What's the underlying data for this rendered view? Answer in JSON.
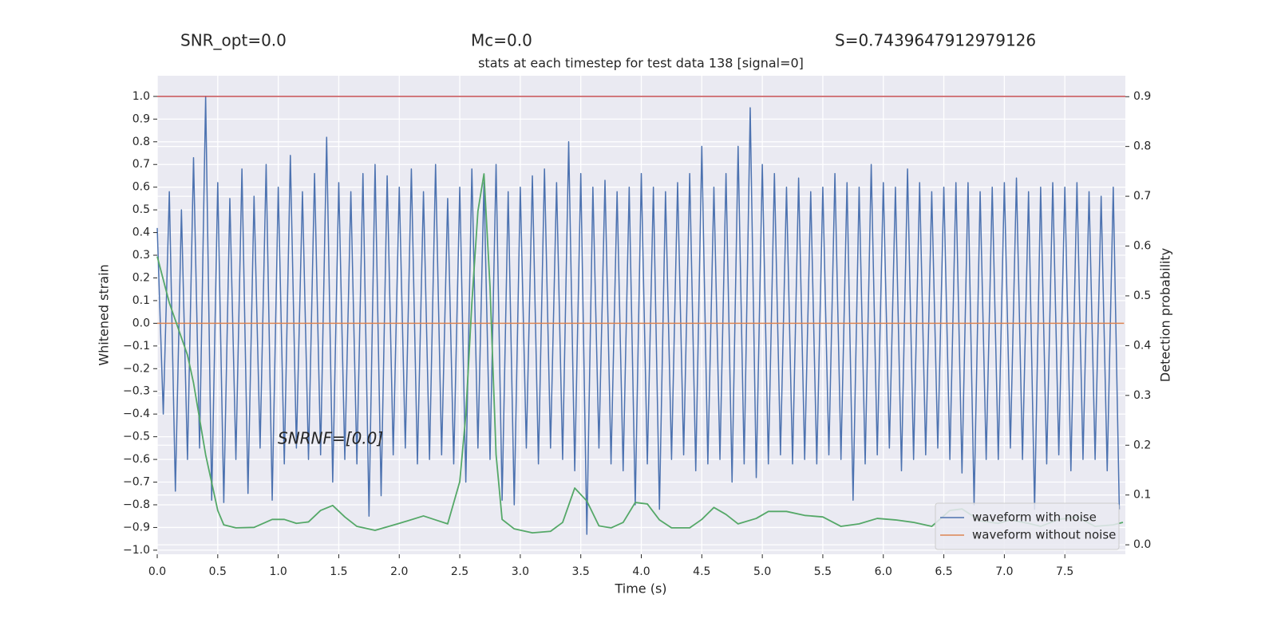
{
  "chart_data": {
    "type": "line",
    "title": "stats at each timestep for test data 138 [signal=0]",
    "header_texts": [
      "SNR_opt=0.0",
      "Mc=0.0",
      "S=0.7439647912979126"
    ],
    "annotation": "SNRNF=[0.0]",
    "xlabel": "Time (s)",
    "ylabel": "Whitened strain",
    "y2label": "Detection probability",
    "xlim": [
      0,
      8.0
    ],
    "ylim": [
      -1.018,
      1.091
    ],
    "y2lim": [
      -0.019,
      0.942
    ],
    "xticks": [
      {
        "value": 0,
        "label": "0.0"
      },
      0.5,
      {
        "value": 1,
        "label": "1.0"
      },
      1.5,
      {
        "value": 2,
        "label": "2.0"
      },
      2.5,
      {
        "value": 3,
        "label": "3.0"
      },
      3.5,
      {
        "value": 4,
        "label": "4.0"
      },
      4.5,
      {
        "value": 5,
        "label": "5.0"
      },
      5.5,
      {
        "value": 6,
        "label": "6.0"
      },
      6.5,
      {
        "value": 7,
        "label": "7.0"
      },
      7.5
    ],
    "yticks": [
      {
        "value": -1,
        "label": "−1.0"
      },
      {
        "value": -0.9,
        "label": "−0.9"
      },
      {
        "value": -0.8,
        "label": "−0.8"
      },
      {
        "value": -0.7,
        "label": "−0.7"
      },
      {
        "value": -0.6,
        "label": "−0.6"
      },
      {
        "value": -0.5,
        "label": "−0.5"
      },
      {
        "value": -0.4,
        "label": "−0.4"
      },
      {
        "value": -0.3,
        "label": "−0.3"
      },
      {
        "value": -0.2,
        "label": "−0.2"
      },
      {
        "value": -0.1,
        "label": "−0.1"
      },
      {
        "value": 0,
        "label": "0.0"
      },
      0.1,
      0.2,
      0.3,
      0.4,
      0.5,
      0.6,
      0.7,
      0.8,
      0.9,
      {
        "value": 1,
        "label": "1.0"
      }
    ],
    "y2ticks": [
      {
        "value": 0,
        "label": "0.0"
      },
      0.1,
      0.2,
      0.3,
      0.4,
      0.5,
      0.6,
      0.7,
      0.8,
      0.9
    ],
    "grid": true,
    "legend": "lower right",
    "hlines": [
      {
        "value": 1,
        "color": "#c44e52"
      }
    ],
    "series": [
      {
        "name": "waveform with noise",
        "color": "#4c72b0",
        "x": [
          0,
          0.05,
          0.1,
          0.15,
          0.2,
          0.25,
          0.3,
          0.35,
          0.4,
          0.45,
          0.5,
          0.55,
          0.6,
          0.65,
          0.7,
          0.75,
          0.8,
          0.85,
          0.9,
          0.95,
          1,
          1.05,
          1.1,
          1.15,
          1.2,
          1.25,
          1.3,
          1.35,
          1.4,
          1.45,
          1.5,
          1.55,
          1.6,
          1.65,
          1.7,
          1.75,
          1.8,
          1.85,
          1.9,
          1.95,
          2,
          2.05,
          2.1,
          2.15,
          2.2,
          2.25,
          2.3,
          2.35,
          2.4,
          2.45,
          2.5,
          2.55,
          2.6,
          2.65,
          2.7,
          2.75,
          2.8,
          2.85,
          2.9,
          2.95,
          3,
          3.05,
          3.1,
          3.15,
          3.2,
          3.25,
          3.3,
          3.35,
          3.4,
          3.45,
          3.5,
          3.55,
          3.6,
          3.65,
          3.7,
          3.75,
          3.8,
          3.85,
          3.9,
          3.95,
          4,
          4.05,
          4.1,
          4.15,
          4.2,
          4.25,
          4.3,
          4.35,
          4.4,
          4.45,
          4.5,
          4.55,
          4.6,
          4.65,
          4.7,
          4.75,
          4.8,
          4.85,
          4.9,
          4.95,
          5,
          5.05,
          5.1,
          5.15,
          5.2,
          5.25,
          5.3,
          5.35,
          5.4,
          5.45,
          5.5,
          5.55,
          5.6,
          5.65,
          5.7,
          5.75,
          5.8,
          5.85,
          5.9,
          5.95,
          6,
          6.05,
          6.1,
          6.15,
          6.2,
          6.25,
          6.3,
          6.35,
          6.4,
          6.45,
          6.5,
          6.55,
          6.6,
          6.65,
          6.7,
          6.75,
          6.8,
          6.85,
          6.9,
          6.95,
          7,
          7.05,
          7.1,
          7.15,
          7.2,
          7.25,
          7.3,
          7.35,
          7.4,
          7.45,
          7.5,
          7.55,
          7.6,
          7.65,
          7.7,
          7.75,
          7.8,
          7.85,
          7.9,
          7.95
        ],
        "values": [
          0.42,
          -0.4,
          0.58,
          -0.74,
          0.5,
          -0.6,
          0.73,
          -0.55,
          1.0,
          -0.78,
          0.62,
          -0.79,
          0.55,
          -0.6,
          0.68,
          -0.75,
          0.56,
          -0.55,
          0.7,
          -0.78,
          0.6,
          -0.62,
          0.74,
          -0.55,
          0.58,
          -0.6,
          0.66,
          -0.58,
          0.82,
          -0.7,
          0.62,
          -0.6,
          0.58,
          -0.62,
          0.66,
          -0.85,
          0.7,
          -0.76,
          0.65,
          -0.58,
          0.6,
          -0.55,
          0.68,
          -0.62,
          0.58,
          -0.6,
          0.7,
          -0.58,
          0.55,
          -0.62,
          0.6,
          -0.7,
          0.68,
          -0.55,
          0.62,
          -0.6,
          0.7,
          -0.78,
          0.58,
          -0.8,
          0.6,
          -0.55,
          0.65,
          -0.62,
          0.68,
          -0.55,
          0.62,
          -0.6,
          0.8,
          -0.65,
          0.66,
          -0.93,
          0.6,
          -0.55,
          0.63,
          -0.62,
          0.58,
          -0.65,
          0.6,
          -0.8,
          0.66,
          -0.62,
          0.6,
          -0.82,
          0.58,
          -0.6,
          0.62,
          -0.58,
          0.66,
          -0.65,
          0.78,
          -0.62,
          0.6,
          -0.6,
          0.66,
          -0.7,
          0.78,
          -0.62,
          0.95,
          -0.68,
          0.7,
          -0.62,
          0.66,
          -0.58,
          0.6,
          -0.62,
          0.64,
          -0.6,
          0.58,
          -0.62,
          0.6,
          -0.58,
          0.66,
          -0.6,
          0.62,
          -0.78,
          0.6,
          -0.62,
          0.7,
          -0.58,
          0.62,
          -0.55,
          0.6,
          -0.65,
          0.68,
          -0.6,
          0.62,
          -0.58,
          0.58,
          -0.55,
          0.6,
          -0.6,
          0.62,
          -0.66,
          0.62,
          -0.8,
          0.58,
          -0.6,
          0.6,
          -0.6,
          0.62,
          -0.55,
          0.64,
          -0.6,
          0.58,
          -0.82,
          0.6,
          -0.62,
          0.62,
          -0.58,
          0.6,
          -0.65,
          0.62,
          -0.6,
          0.58,
          -0.6,
          0.56,
          -0.65,
          0.6,
          -0.82
        ]
      },
      {
        "name": "waveform without noise",
        "color": "#dd8452",
        "x": [
          0,
          7.99
        ],
        "values": [
          0,
          0
        ]
      },
      {
        "color": "#55a868",
        "axis": "y2",
        "x": [
          0,
          0.1,
          0.25,
          0.3,
          0.4,
          0.5,
          0.55,
          0.65,
          0.8,
          0.95,
          1.05,
          1.15,
          1.25,
          1.35,
          1.45,
          1.55,
          1.65,
          1.8,
          2.0,
          2.2,
          2.3,
          2.4,
          2.5,
          2.55,
          2.6,
          2.65,
          2.7,
          2.75,
          2.8,
          2.85,
          2.95,
          3.1,
          3.25,
          3.35,
          3.45,
          3.55,
          3.65,
          3.75,
          3.85,
          3.95,
          4.05,
          4.15,
          4.25,
          4.4,
          4.5,
          4.6,
          4.7,
          4.8,
          4.95,
          5.05,
          5.2,
          5.35,
          5.5,
          5.65,
          5.8,
          5.95,
          6.1,
          6.25,
          6.4,
          6.55,
          6.65,
          6.8,
          6.95,
          7.05,
          7.2,
          7.3,
          7.45,
          7.6,
          7.75,
          7.9,
          7.98
        ],
        "values": [
          0.579,
          0.486,
          0.381,
          0.325,
          0.181,
          0.069,
          0.04,
          0.034,
          0.035,
          0.051,
          0.051,
          0.043,
          0.046,
          0.069,
          0.079,
          0.056,
          0.037,
          0.029,
          0.043,
          0.058,
          0.05,
          0.042,
          0.127,
          0.261,
          0.486,
          0.67,
          0.745,
          0.518,
          0.181,
          0.051,
          0.032,
          0.024,
          0.027,
          0.045,
          0.114,
          0.088,
          0.038,
          0.034,
          0.045,
          0.085,
          0.082,
          0.05,
          0.034,
          0.034,
          0.051,
          0.075,
          0.061,
          0.042,
          0.053,
          0.067,
          0.067,
          0.059,
          0.056,
          0.037,
          0.042,
          0.053,
          0.05,
          0.045,
          0.037,
          0.069,
          0.072,
          0.048,
          0.043,
          0.05,
          0.043,
          0.037,
          0.051,
          0.056,
          0.037,
          0.04,
          0.045
        ]
      }
    ]
  }
}
